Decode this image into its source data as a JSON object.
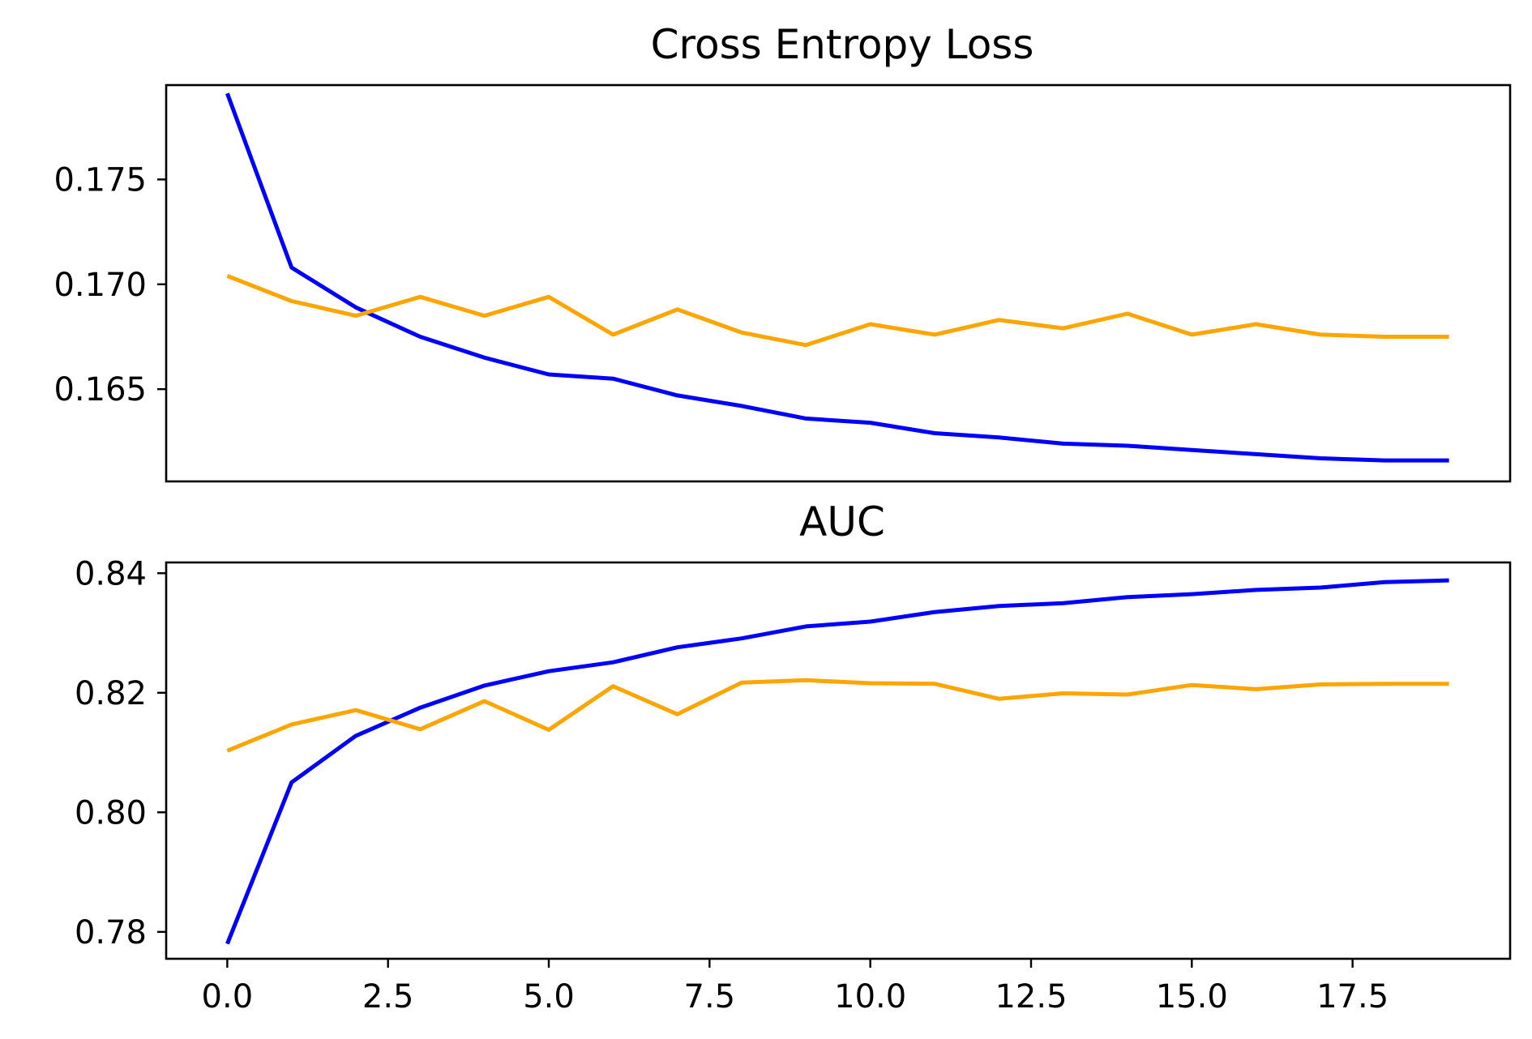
{
  "chart_data": [
    {
      "type": "line",
      "title": "Cross Entropy Loss",
      "xlabel": "",
      "ylabel": "",
      "x": [
        0,
        1,
        2,
        3,
        4,
        5,
        6,
        7,
        8,
        9,
        10,
        11,
        12,
        13,
        14,
        15,
        16,
        17,
        18,
        19
      ],
      "xlim": [
        -0.95,
        19.95
      ],
      "ylim": [
        0.1606,
        0.1795
      ],
      "yticks": [
        0.165,
        0.17,
        0.175
      ],
      "ytick_labels": [
        "0.165",
        "0.170",
        "0.175"
      ],
      "xticks_shown": false,
      "grid": false,
      "legend": "none",
      "series": [
        {
          "color": "#0000ff",
          "values": [
            0.1791,
            0.1708,
            0.1689,
            0.1675,
            0.1665,
            0.1657,
            0.1655,
            0.1647,
            0.1642,
            0.1636,
            0.1634,
            0.1629,
            0.1627,
            0.1624,
            0.1623,
            0.1621,
            0.1619,
            0.1617,
            0.1616,
            0.1616
          ]
        },
        {
          "color": "#ffa500",
          "values": [
            0.1704,
            0.1692,
            0.1685,
            0.1694,
            0.1685,
            0.1694,
            0.1676,
            0.1688,
            0.1677,
            0.1671,
            0.1681,
            0.1676,
            0.1683,
            0.1679,
            0.1686,
            0.1676,
            0.1681,
            0.1676,
            0.1675,
            0.1675
          ]
        }
      ]
    },
    {
      "type": "line",
      "title": "AUC",
      "xlabel": "",
      "ylabel": "",
      "x": [
        0,
        1,
        2,
        3,
        4,
        5,
        6,
        7,
        8,
        9,
        10,
        11,
        12,
        13,
        14,
        15,
        16,
        17,
        18,
        19
      ],
      "xlim": [
        -0.95,
        19.95
      ],
      "ylim": [
        0.7755,
        0.8418
      ],
      "yticks": [
        0.78,
        0.8,
        0.82,
        0.84
      ],
      "ytick_labels": [
        "0.78",
        "0.80",
        "0.82",
        "0.84"
      ],
      "xticks": [
        0.0,
        2.5,
        5.0,
        7.5,
        10.0,
        12.5,
        15.0,
        17.5
      ],
      "xtick_labels": [
        "0.0",
        "2.5",
        "5.0",
        "7.5",
        "10.0",
        "12.5",
        "15.0",
        "17.5"
      ],
      "grid": false,
      "legend": "none",
      "series": [
        {
          "color": "#0000ff",
          "values": [
            0.778,
            0.805,
            0.8128,
            0.8175,
            0.8212,
            0.8236,
            0.8251,
            0.8276,
            0.8291,
            0.8311,
            0.8319,
            0.8335,
            0.8345,
            0.835,
            0.836,
            0.8365,
            0.8372,
            0.8376,
            0.8385,
            0.8388
          ]
        },
        {
          "color": "#ffa500",
          "values": [
            0.8103,
            0.8147,
            0.8171,
            0.8139,
            0.8186,
            0.8138,
            0.8211,
            0.8164,
            0.8217,
            0.8221,
            0.8216,
            0.8215,
            0.819,
            0.8199,
            0.8197,
            0.8213,
            0.8206,
            0.8214,
            0.8215,
            0.8215
          ]
        }
      ]
    }
  ]
}
